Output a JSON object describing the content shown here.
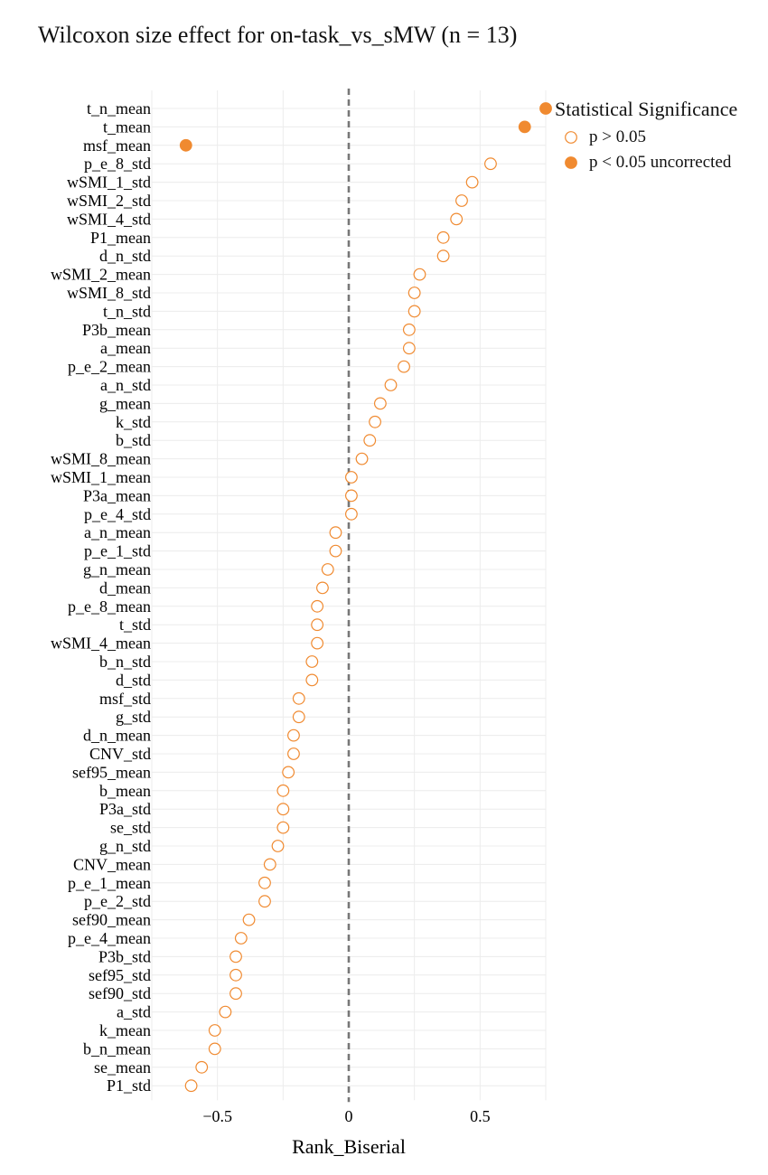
{
  "chart_data": {
    "type": "scatter",
    "title": "Wilcoxon size effect for on-task_vs_sMW (n = 13)",
    "xlabel": "Rank_Biserial",
    "ylabel": "",
    "xlim": [
      -0.75,
      0.75
    ],
    "x_ticks": [
      {
        "value": -0.5,
        "label": "−0.5"
      },
      {
        "value": 0,
        "label": "0"
      },
      {
        "value": 0.5,
        "label": "0.5"
      }
    ],
    "reference_line": {
      "x": 0,
      "style": "dashed",
      "color": "#777777"
    },
    "grid": true,
    "legend": {
      "title": "Statistical Significance",
      "position": "top-right",
      "entries": [
        {
          "label": "p > 0.05",
          "filled": false
        },
        {
          "label": "p < 0.05 uncorrected",
          "filled": true
        }
      ]
    },
    "marker_color": "#f08a30",
    "points": [
      {
        "label": "t_n_mean",
        "x": 0.75,
        "significant": true
      },
      {
        "label": "t_mean",
        "x": 0.67,
        "significant": true
      },
      {
        "label": "msf_mean",
        "x": -0.62,
        "significant": true
      },
      {
        "label": "p_e_8_std",
        "x": 0.54,
        "significant": false
      },
      {
        "label": "wSMI_1_std",
        "x": 0.47,
        "significant": false
      },
      {
        "label": "wSMI_2_std",
        "x": 0.43,
        "significant": false
      },
      {
        "label": "wSMI_4_std",
        "x": 0.41,
        "significant": false
      },
      {
        "label": "P1_mean",
        "x": 0.36,
        "significant": false
      },
      {
        "label": "d_n_std",
        "x": 0.36,
        "significant": false
      },
      {
        "label": "wSMI_2_mean",
        "x": 0.27,
        "significant": false
      },
      {
        "label": "wSMI_8_std",
        "x": 0.25,
        "significant": false
      },
      {
        "label": "t_n_std",
        "x": 0.25,
        "significant": false
      },
      {
        "label": "P3b_mean",
        "x": 0.23,
        "significant": false
      },
      {
        "label": "a_mean",
        "x": 0.23,
        "significant": false
      },
      {
        "label": "p_e_2_mean",
        "x": 0.21,
        "significant": false
      },
      {
        "label": "a_n_std",
        "x": 0.16,
        "significant": false
      },
      {
        "label": "g_mean",
        "x": 0.12,
        "significant": false
      },
      {
        "label": "k_std",
        "x": 0.1,
        "significant": false
      },
      {
        "label": "b_std",
        "x": 0.08,
        "significant": false
      },
      {
        "label": "wSMI_8_mean",
        "x": 0.05,
        "significant": false
      },
      {
        "label": "wSMI_1_mean",
        "x": 0.01,
        "significant": false
      },
      {
        "label": "P3a_mean",
        "x": 0.01,
        "significant": false
      },
      {
        "label": "p_e_4_std",
        "x": 0.01,
        "significant": false
      },
      {
        "label": "a_n_mean",
        "x": -0.05,
        "significant": false
      },
      {
        "label": "p_e_1_std",
        "x": -0.05,
        "significant": false
      },
      {
        "label": "g_n_mean",
        "x": -0.08,
        "significant": false
      },
      {
        "label": "d_mean",
        "x": -0.1,
        "significant": false
      },
      {
        "label": "p_e_8_mean",
        "x": -0.12,
        "significant": false
      },
      {
        "label": "t_std",
        "x": -0.12,
        "significant": false
      },
      {
        "label": "wSMI_4_mean",
        "x": -0.12,
        "significant": false
      },
      {
        "label": "b_n_std",
        "x": -0.14,
        "significant": false
      },
      {
        "label": "d_std",
        "x": -0.14,
        "significant": false
      },
      {
        "label": "msf_std",
        "x": -0.19,
        "significant": false
      },
      {
        "label": "g_std",
        "x": -0.19,
        "significant": false
      },
      {
        "label": "d_n_mean",
        "x": -0.21,
        "significant": false
      },
      {
        "label": "CNV_std",
        "x": -0.21,
        "significant": false
      },
      {
        "label": "sef95_mean",
        "x": -0.23,
        "significant": false
      },
      {
        "label": "b_mean",
        "x": -0.25,
        "significant": false
      },
      {
        "label": "P3a_std",
        "x": -0.25,
        "significant": false
      },
      {
        "label": "se_std",
        "x": -0.25,
        "significant": false
      },
      {
        "label": "g_n_std",
        "x": -0.27,
        "significant": false
      },
      {
        "label": "CNV_mean",
        "x": -0.3,
        "significant": false
      },
      {
        "label": "p_e_1_mean",
        "x": -0.32,
        "significant": false
      },
      {
        "label": "p_e_2_std",
        "x": -0.32,
        "significant": false
      },
      {
        "label": "sef90_mean",
        "x": -0.38,
        "significant": false
      },
      {
        "label": "p_e_4_mean",
        "x": -0.41,
        "significant": false
      },
      {
        "label": "P3b_std",
        "x": -0.43,
        "significant": false
      },
      {
        "label": "sef95_std",
        "x": -0.43,
        "significant": false
      },
      {
        "label": "sef90_std",
        "x": -0.43,
        "significant": false
      },
      {
        "label": "a_std",
        "x": -0.47,
        "significant": false
      },
      {
        "label": "k_mean",
        "x": -0.51,
        "significant": false
      },
      {
        "label": "b_n_mean",
        "x": -0.51,
        "significant": false
      },
      {
        "label": "se_mean",
        "x": -0.56,
        "significant": false
      },
      {
        "label": "P1_std",
        "x": -0.6,
        "significant": false
      }
    ]
  }
}
